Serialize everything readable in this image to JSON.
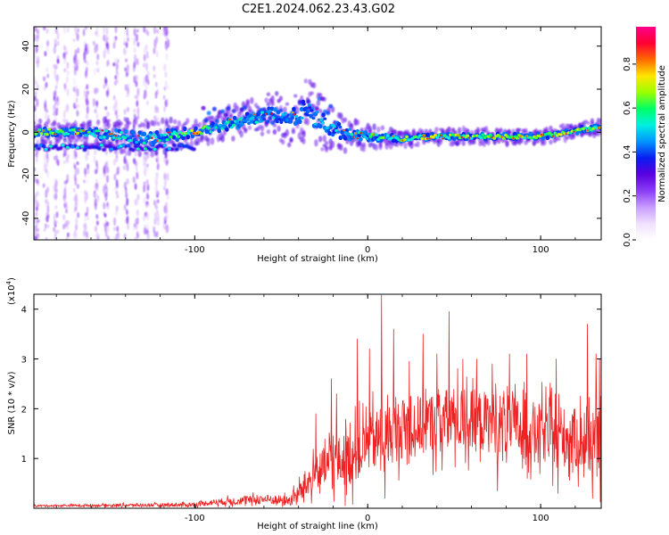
{
  "title": "C2E1.2024.062.23.43.G02",
  "colors": {
    "snr_line": "#ee2222",
    "frame": "#000000",
    "colormap": [
      "#ffffff",
      "#f0e0ff",
      "#c89cff",
      "#8a3cf5",
      "#5a00e0",
      "#0a1ef0",
      "#0095ff",
      "#00f0e0",
      "#00ff66",
      "#9cff00",
      "#ffe600",
      "#ff6a00",
      "#ff0033",
      "#ff0088"
    ]
  },
  "chart_data": [
    {
      "type": "heatmap",
      "name": "spectrogram",
      "xlabel": "Height of straight line (km)",
      "ylabel": "Frequency (Hz)",
      "xlim": [
        -193,
        135
      ],
      "ylim": [
        -50,
        49
      ],
      "xticks": [
        -100,
        0,
        100
      ],
      "xtick_labels": [
        "-100",
        "0",
        "100"
      ],
      "yticks": [
        -40,
        -20,
        0,
        20,
        40
      ],
      "ytick_labels": [
        "-40",
        "-20",
        "0",
        "20",
        "40"
      ],
      "colorbar": {
        "label": "Normalized spectral amplitude",
        "range": [
          0.0,
          0.97
        ],
        "ticks": [
          0.0,
          0.2,
          0.4,
          0.6,
          0.8
        ],
        "tick_labels": [
          "0.0",
          "0.2",
          "0.4",
          "0.6",
          "0.8"
        ]
      },
      "ridge": [
        {
          "x": -190,
          "f": 0,
          "spread": 3,
          "amp": 0.72
        },
        {
          "x": -170,
          "f": 0,
          "spread": 3,
          "amp": 0.65
        },
        {
          "x": -150,
          "f": -1,
          "spread": 4,
          "amp": 0.55
        },
        {
          "x": -130,
          "f": -3,
          "spread": 5,
          "amp": 0.55
        },
        {
          "x": -110,
          "f": -1,
          "spread": 4,
          "amp": 0.6
        },
        {
          "x": -100,
          "f": 0,
          "spread": 3,
          "amp": 0.8
        },
        {
          "x": -90,
          "f": 2,
          "spread": 4,
          "amp": 0.55
        },
        {
          "x": -70,
          "f": 6,
          "spread": 5,
          "amp": 0.55
        },
        {
          "x": -55,
          "f": 8,
          "spread": 6,
          "amp": 0.5
        },
        {
          "x": -45,
          "f": 6,
          "spread": 7,
          "amp": 0.5
        },
        {
          "x": -35,
          "f": 10,
          "spread": 9,
          "amp": 0.45
        },
        {
          "x": -25,
          "f": 4,
          "spread": 7,
          "amp": 0.5
        },
        {
          "x": -15,
          "f": 0,
          "spread": 5,
          "amp": 0.55
        },
        {
          "x": 0,
          "f": -2,
          "spread": 3,
          "amp": 0.6
        },
        {
          "x": 20,
          "f": -3,
          "spread": 2,
          "amp": 0.65
        },
        {
          "x": 40,
          "f": -2,
          "spread": 2,
          "amp": 0.7
        },
        {
          "x": 60,
          "f": -2,
          "spread": 2,
          "amp": 0.7
        },
        {
          "x": 80,
          "f": -2,
          "spread": 2,
          "amp": 0.7
        },
        {
          "x": 100,
          "f": -2,
          "spread": 2,
          "amp": 0.75
        },
        {
          "x": 115,
          "f": 0,
          "spread": 2,
          "amp": 0.7
        },
        {
          "x": 130,
          "f": 2,
          "spread": 2,
          "amp": 0.7
        }
      ],
      "lower_band": {
        "x_range": [
          -193,
          -100
        ],
        "f": -7,
        "amp": 0.55
      },
      "upper_band": {
        "x_range": [
          -95,
          -20
        ],
        "f": 10,
        "amp": 0.45
      },
      "noise_columns": {
        "x_range": [
          -193,
          -112
        ],
        "amp": 0.25
      }
    },
    {
      "type": "line",
      "name": "snr",
      "xlabel": "Height of straight line (km)",
      "ylabel": "SNR (10 * v/v)",
      "scale_label": "(x10",
      "scale_exponent": "4",
      "scale_close": ")",
      "xlim": [
        -193,
        135
      ],
      "ylim": [
        0,
        4.3
      ],
      "xticks": [
        -100,
        0,
        100
      ],
      "xtick_labels": [
        "-100",
        "0",
        "100"
      ],
      "yticks": [
        1,
        2,
        3,
        4
      ],
      "ytick_labels": [
        "1",
        "2",
        "3",
        "4"
      ],
      "envelope": [
        {
          "x": -193,
          "base": 0.05,
          "amp": 0.02
        },
        {
          "x": -100,
          "base": 0.07,
          "amp": 0.05
        },
        {
          "x": -90,
          "base": 0.12,
          "amp": 0.07
        },
        {
          "x": -60,
          "base": 0.18,
          "amp": 0.12
        },
        {
          "x": -45,
          "base": 0.15,
          "amp": 0.12
        },
        {
          "x": -40,
          "base": 0.3,
          "amp": 0.25
        },
        {
          "x": -30,
          "base": 0.7,
          "amp": 0.45
        },
        {
          "x": -20,
          "base": 0.9,
          "amp": 0.6
        },
        {
          "x": -10,
          "base": 1.0,
          "amp": 0.7
        },
        {
          "x": 0,
          "base": 1.3,
          "amp": 0.75
        },
        {
          "x": 20,
          "base": 1.6,
          "amp": 0.75
        },
        {
          "x": 50,
          "base": 1.8,
          "amp": 0.8
        },
        {
          "x": 80,
          "base": 1.7,
          "amp": 0.75
        },
        {
          "x": 100,
          "base": 1.5,
          "amp": 0.75
        },
        {
          "x": 120,
          "base": 1.4,
          "amp": 0.75
        },
        {
          "x": 135,
          "base": 1.2,
          "amp": 0.8
        }
      ],
      "peaks": [
        {
          "x": -30,
          "y": 1.9
        },
        {
          "x": -21,
          "y": 2.6
        },
        {
          "x": -18,
          "y": 2.3
        },
        {
          "x": -6,
          "y": 3.4
        },
        {
          "x": 1,
          "y": 3.2
        },
        {
          "x": 8,
          "y": 4.28
        },
        {
          "x": 15,
          "y": 3.6
        },
        {
          "x": 24,
          "y": 2.95
        },
        {
          "x": 32,
          "y": 3.5
        },
        {
          "x": 40,
          "y": 3.1
        },
        {
          "x": 47,
          "y": 3.95
        },
        {
          "x": 55,
          "y": 3.0
        },
        {
          "x": 63,
          "y": 3.0
        },
        {
          "x": 72,
          "y": 2.9
        },
        {
          "x": 82,
          "y": 3.1
        },
        {
          "x": 92,
          "y": 3.1
        },
        {
          "x": 109,
          "y": 3.0
        },
        {
          "x": 127,
          "y": 3.7
        },
        {
          "x": 132,
          "y": 3.1
        },
        {
          "x": 134,
          "y": 3.0
        }
      ],
      "dips": [
        {
          "x": 10,
          "y": 0.2
        },
        {
          "x": 75,
          "y": 0.35
        },
        {
          "x": 110,
          "y": 0.3
        },
        {
          "x": 130,
          "y": 0.2
        }
      ]
    }
  ]
}
